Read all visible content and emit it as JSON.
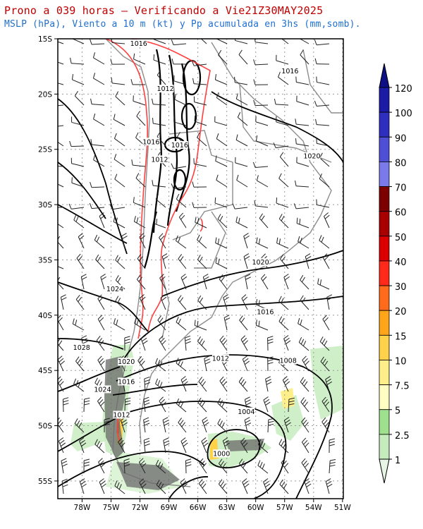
{
  "header": {
    "title": "Prono a 039 horas — Verificando a Vie21Z30MAY2025",
    "subtitle": "MSLP (hPa), Viento a 10 m (kt) y Pp acumulada en 3hs (mm,somb)."
  },
  "map": {
    "lat_labels": [
      "15S",
      "20S",
      "25S",
      "30S",
      "35S",
      "40S",
      "45S",
      "50S",
      "55S"
    ],
    "lon_labels": [
      "78W",
      "75W",
      "72W",
      "69W",
      "66W",
      "63W",
      "60W",
      "57W",
      "54W",
      "51W"
    ],
    "isobars": [
      {
        "label": "1016",
        "lon": -71.5,
        "lat": -15.5
      },
      {
        "label": "1016",
        "lon": -55.6,
        "lat": -18.0
      },
      {
        "label": "1012",
        "lon": -68.7,
        "lat": -19.6
      },
      {
        "label": "1016",
        "lon": -70.2,
        "lat": -24.4
      },
      {
        "label": "1016",
        "lon": -67.2,
        "lat": -24.7
      },
      {
        "label": "1012",
        "lon": -69.3,
        "lat": -26.0
      },
      {
        "label": "1020",
        "lon": -53.3,
        "lat": -25.7
      },
      {
        "label": "1020",
        "lon": -58.7,
        "lat": -35.3
      },
      {
        "label": "1024",
        "lon": -74.0,
        "lat": -37.7
      },
      {
        "label": "1016",
        "lon": -58.2,
        "lat": -39.8
      },
      {
        "label": "1028",
        "lon": -77.5,
        "lat": -43.0
      },
      {
        "label": "1020",
        "lon": -72.8,
        "lat": -44.3
      },
      {
        "label": "1012",
        "lon": -62.9,
        "lat": -44.0
      },
      {
        "label": "1008",
        "lon": -55.8,
        "lat": -44.2
      },
      {
        "label": "1016",
        "lon": -72.8,
        "lat": -46.1
      },
      {
        "label": "1024",
        "lon": -75.3,
        "lat": -46.8
      },
      {
        "label": "1004",
        "lon": -60.2,
        "lat": -48.8
      },
      {
        "label": "1012",
        "lon": -73.3,
        "lat": -49.1
      },
      {
        "label": "1000",
        "lon": -62.8,
        "lat": -52.6
      }
    ]
  },
  "colorbar": {
    "labels": [
      "1",
      "2.5",
      "5",
      "7.5",
      "10",
      "15",
      "20",
      "30",
      "40",
      "50",
      "60",
      "70",
      "80",
      "90",
      "100",
      "120"
    ],
    "colors": [
      "#e6f5e4",
      "#c6ecbd",
      "#9ee08e",
      "#ffffc4",
      "#ffef8a",
      "#ffd24a",
      "#ffa51a",
      "#ff6b1a",
      "#ff2a1a",
      "#dd0000",
      "#a80000",
      "#7d0000",
      "#7a7aea",
      "#4f4fd6",
      "#2f2fbf",
      "#1b1ba5",
      "#0f0f85"
    ]
  }
}
